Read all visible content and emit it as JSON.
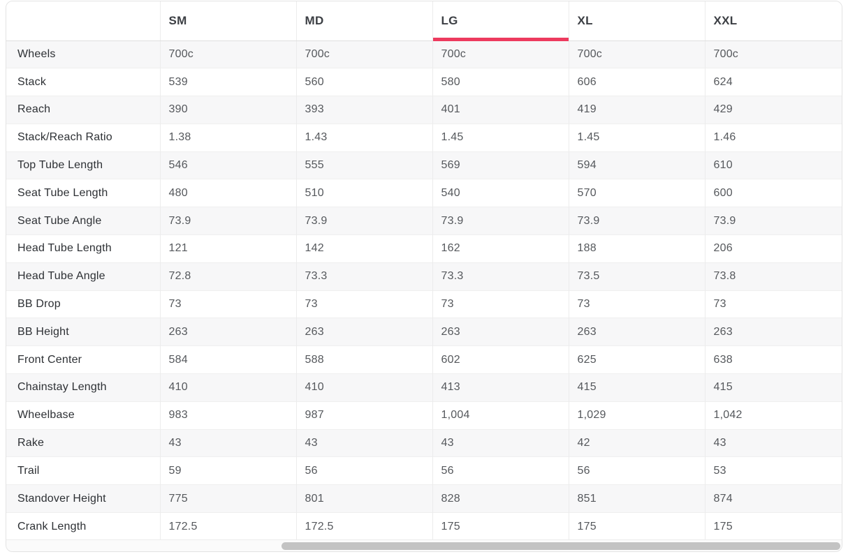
{
  "colors": {
    "accent": "#ED3A5E",
    "stripe": "#f7f7f8",
    "scrollbar_thumb": "#c3c3c3"
  },
  "table": {
    "columns": [
      {
        "label": "",
        "selected": false
      },
      {
        "label": "SM",
        "selected": false
      },
      {
        "label": "MD",
        "selected": false
      },
      {
        "label": "LG",
        "selected": true
      },
      {
        "label": "XL",
        "selected": false
      },
      {
        "label": "XXL",
        "selected": false
      }
    ],
    "rows": [
      {
        "label": "Wheels",
        "values": [
          "700c",
          "700c",
          "700c",
          "700c",
          "700c"
        ]
      },
      {
        "label": "Stack",
        "values": [
          "539",
          "560",
          "580",
          "606",
          "624"
        ]
      },
      {
        "label": "Reach",
        "values": [
          "390",
          "393",
          "401",
          "419",
          "429"
        ]
      },
      {
        "label": "Stack/Reach Ratio",
        "values": [
          "1.38",
          "1.43",
          "1.45",
          "1.45",
          "1.46"
        ]
      },
      {
        "label": "Top Tube Length",
        "values": [
          "546",
          "555",
          "569",
          "594",
          "610"
        ]
      },
      {
        "label": "Seat Tube Length",
        "values": [
          "480",
          "510",
          "540",
          "570",
          "600"
        ]
      },
      {
        "label": "Seat Tube Angle",
        "values": [
          "73.9",
          "73.9",
          "73.9",
          "73.9",
          "73.9"
        ]
      },
      {
        "label": "Head Tube Length",
        "values": [
          "121",
          "142",
          "162",
          "188",
          "206"
        ]
      },
      {
        "label": "Head Tube Angle",
        "values": [
          "72.8",
          "73.3",
          "73.3",
          "73.5",
          "73.8"
        ]
      },
      {
        "label": "BB Drop",
        "values": [
          "73",
          "73",
          "73",
          "73",
          "73"
        ]
      },
      {
        "label": "BB Height",
        "values": [
          "263",
          "263",
          "263",
          "263",
          "263"
        ]
      },
      {
        "label": "Front Center",
        "values": [
          "584",
          "588",
          "602",
          "625",
          "638"
        ]
      },
      {
        "label": "Chainstay Length",
        "values": [
          "410",
          "410",
          "413",
          "415",
          "415"
        ]
      },
      {
        "label": "Wheelbase",
        "values": [
          "983",
          "987",
          "1,004",
          "1,029",
          "1,042"
        ]
      },
      {
        "label": "Rake",
        "values": [
          "43",
          "43",
          "43",
          "42",
          "43"
        ]
      },
      {
        "label": "Trail",
        "values": [
          "59",
          "56",
          "56",
          "56",
          "53"
        ]
      },
      {
        "label": "Standover Height",
        "values": [
          "775",
          "801",
          "828",
          "851",
          "874"
        ]
      },
      {
        "label": "Crank Length",
        "values": [
          "172.5",
          "172.5",
          "175",
          "175",
          "175"
        ]
      }
    ]
  }
}
